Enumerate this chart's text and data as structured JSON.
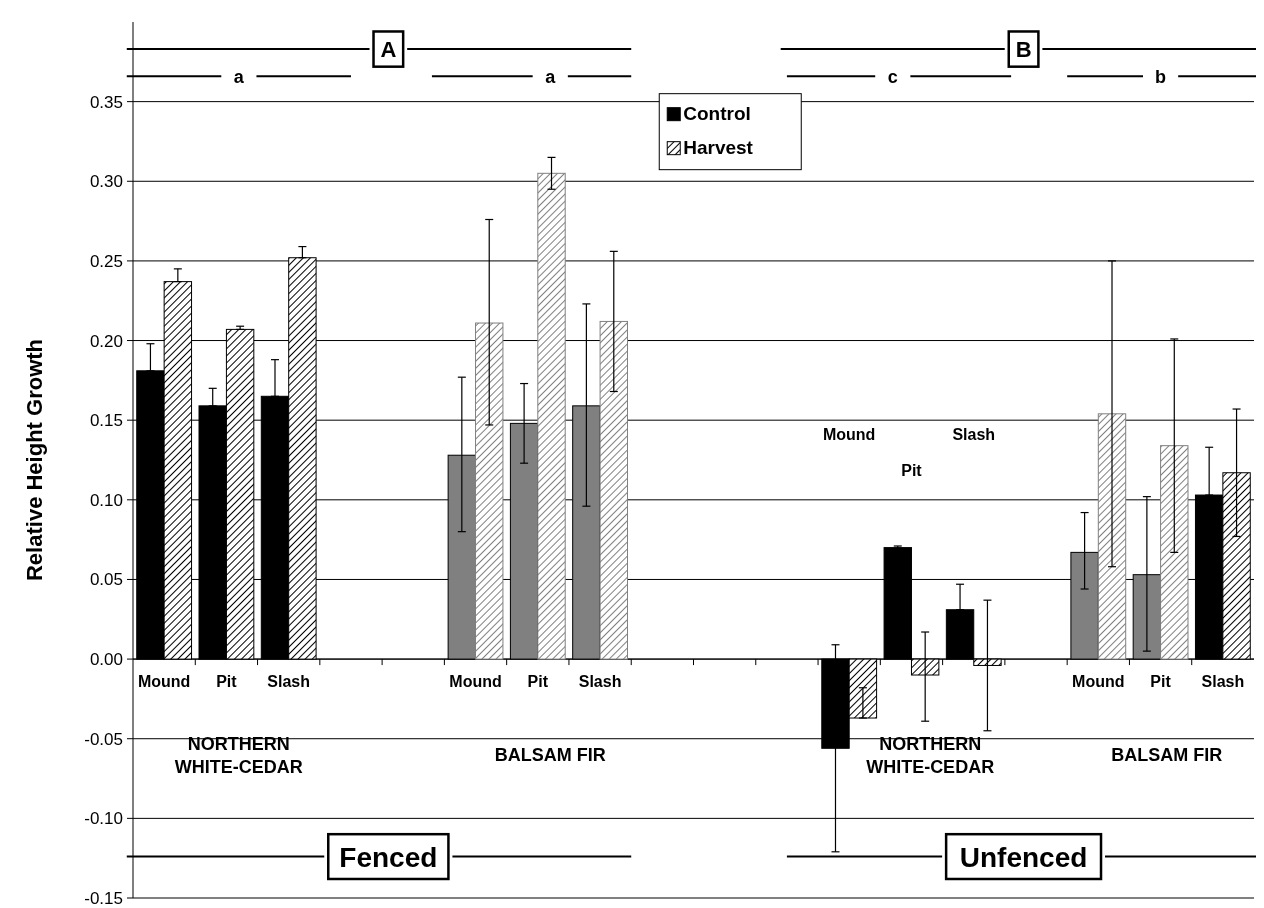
{
  "chart_data": {
    "type": "bar",
    "ylabel": "Relative Height Growth",
    "categories": [
      "Mound",
      "Pit",
      "Slash",
      null,
      null,
      "Mound",
      "Pit",
      "Slash",
      null,
      null,
      null,
      "Mound",
      "Pit",
      "Slash",
      null,
      "Mound",
      "Pit",
      "Slash"
    ],
    "series": [
      {
        "name": "Control",
        "color": "#000000",
        "colors": [
          "#000000",
          "#000000",
          "#000000",
          null,
          null,
          "#808080",
          "#808080",
          "#808080",
          null,
          null,
          null,
          "#000000",
          "#000000",
          "#000000",
          null,
          "#808080",
          "#808080",
          "#000000"
        ],
        "values": [
          0.181,
          0.159,
          0.165,
          null,
          null,
          0.128,
          0.148,
          0.159,
          null,
          null,
          null,
          -0.056,
          0.07,
          0.031,
          null,
          0.067,
          0.053,
          0.103
        ],
        "errors": [
          [
            0.181,
            0.198
          ],
          [
            0.159,
            0.17
          ],
          [
            0.165,
            0.188
          ],
          null,
          null,
          [
            0.08,
            0.177
          ],
          [
            0.123,
            0.173
          ],
          [
            0.096,
            0.223
          ],
          null,
          null,
          null,
          [
            -0.121,
            0.009
          ],
          [
            0.069,
            0.071
          ],
          [
            0.031,
            0.047
          ],
          null,
          [
            0.044,
            0.092
          ],
          [
            0.005,
            0.102
          ],
          [
            0.103,
            0.133
          ]
        ]
      },
      {
        "name": "Harvest",
        "color": "#000000",
        "colors": [
          "#000000",
          "#000000",
          "#000000",
          null,
          null,
          "#808080",
          "#808080",
          "#808080",
          null,
          null,
          null,
          "#000000",
          "#000000",
          "#000000",
          null,
          "#808080",
          "#808080",
          "#000000"
        ],
        "values": [
          0.237,
          0.207,
          0.252,
          null,
          null,
          0.211,
          0.305,
          0.212,
          null,
          null,
          null,
          -0.037,
          -0.01,
          -0.004,
          null,
          0.154,
          0.134,
          0.117
        ],
        "errors": [
          [
            0.237,
            0.245
          ],
          [
            0.207,
            0.209
          ],
          [
            0.252,
            0.259
          ],
          null,
          null,
          [
            0.147,
            0.276
          ],
          [
            0.295,
            0.315
          ],
          [
            0.168,
            0.256
          ],
          null,
          null,
          null,
          [
            -0.037,
            -0.018
          ],
          [
            -0.039,
            0.017
          ],
          [
            -0.045,
            0.037
          ],
          null,
          [
            0.058,
            0.25
          ],
          [
            0.067,
            0.201
          ],
          [
            0.077,
            0.157
          ]
        ]
      }
    ],
    "ylim": [
      -0.15,
      0.4
    ],
    "yticks": [
      {
        "value": -0.15,
        "label": "-0.15"
      },
      {
        "value": -0.1,
        "label": "-0.10"
      },
      {
        "value": -0.05,
        "label": "-0.05"
      },
      {
        "value": 0,
        "label": "0.00"
      },
      {
        "value": 0.05,
        "label": "0.05"
      },
      {
        "value": 0.1,
        "label": "0.10"
      },
      {
        "value": 0.15,
        "label": "0.15"
      },
      {
        "value": 0.2,
        "label": "0.20"
      },
      {
        "value": 0.25,
        "label": "0.25"
      },
      {
        "value": 0.3,
        "label": "0.30"
      },
      {
        "value": 0.35,
        "label": "0.35"
      }
    ],
    "grid": "y",
    "legend": "top",
    "annotations": [
      "A",
      "a",
      "a",
      "B",
      "c",
      "b",
      "NORTHERN WHITE-CEDAR",
      "BALSAM FIR",
      "NORTHERN WHITE-CEDAR",
      "BALSAM FIR",
      "Fenced",
      "Unfenced"
    ]
  }
}
